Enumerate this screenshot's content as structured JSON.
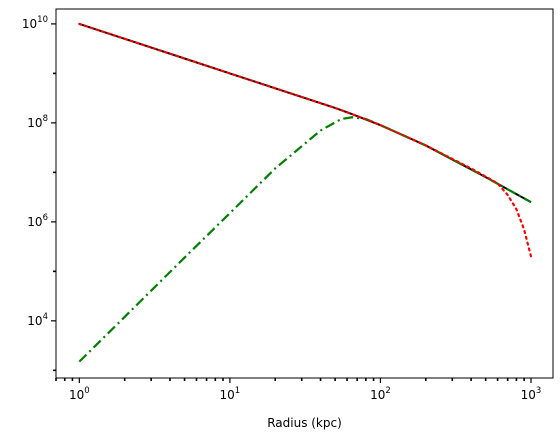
{
  "chart_data": {
    "type": "line",
    "title": "",
    "xlabel": "Radius (kpc)",
    "ylabel": "",
    "xscale": "log",
    "yscale": "log",
    "xlim": [
      0.7,
      1400
    ],
    "ylim": [
      700,
      20000000000
    ],
    "grid": false,
    "legend": "none",
    "x_ticks": [
      {
        "value": 1,
        "base": "10",
        "exp": "0"
      },
      {
        "value": 10,
        "base": "10",
        "exp": "1"
      },
      {
        "value": 100,
        "base": "10",
        "exp": "2"
      },
      {
        "value": 1000,
        "base": "10",
        "exp": "3"
      }
    ],
    "y_ticks": [
      {
        "value": 10000,
        "base": "10",
        "exp": "4"
      },
      {
        "value": 1000000,
        "base": "10",
        "exp": "6"
      },
      {
        "value": 100000000,
        "base": "10",
        "exp": "8"
      },
      {
        "value": 10000000000,
        "base": "10",
        "exp": "10"
      }
    ],
    "series": [
      {
        "style": "solid",
        "color": "#000000",
        "x": [
          1,
          2,
          5,
          10,
          20,
          50,
          65,
          100,
          200,
          500,
          1000
        ],
        "y": [
          10000000000,
          5000000000,
          2000000000,
          1000000000,
          500000000,
          200000000,
          150000000,
          90000000,
          35000000,
          8000000,
          2500000
        ]
      },
      {
        "style": "dotted",
        "color": "#ff0000",
        "x": [
          1,
          2,
          5,
          10,
          20,
          50,
          65,
          100,
          200,
          400,
          600,
          700,
          800,
          900,
          1000
        ],
        "y": [
          10000000000,
          5000000000,
          2000000000,
          1000000000,
          500000000,
          200000000,
          150000000,
          90000000,
          35000000,
          12000000,
          6000000,
          3500000,
          1800000,
          700000,
          200000
        ]
      },
      {
        "style": "dashdot",
        "color": "#008000",
        "x": [
          1,
          2,
          5,
          10,
          20,
          40,
          55,
          65,
          80,
          100,
          200,
          500,
          1000
        ],
        "y": [
          1500,
          12000,
          190000,
          1500000,
          12000000,
          70000000,
          120000000,
          130000000,
          120000000,
          90000000,
          35000000,
          8000000,
          2500000
        ]
      }
    ]
  }
}
